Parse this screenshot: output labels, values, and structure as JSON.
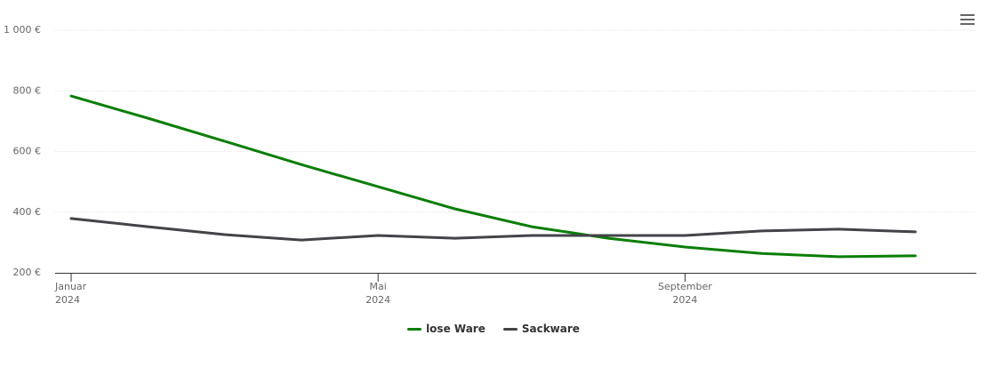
{
  "chart_data": {
    "type": "line",
    "x": [
      "2024-01",
      "2024-02",
      "2024-03",
      "2024-04",
      "2024-05",
      "2024-06",
      "2024-07",
      "2024-08",
      "2024-09",
      "2024-10",
      "2024-11",
      "2024-12"
    ],
    "series": [
      {
        "name": "lose Ware",
        "color": "#0a7e07",
        "values": [
          783,
          710,
          634,
          557,
          484,
          411,
          352,
          314,
          285,
          264,
          253,
          256
        ]
      },
      {
        "name": "Sackware",
        "color": "#434348",
        "values": [
          379,
          352,
          326,
          308,
          323,
          314,
          323,
          323,
          323,
          338,
          344,
          335
        ]
      }
    ],
    "ylim": [
      200,
      1000
    ],
    "yticks": [
      {
        "value": 200,
        "label": "200 €"
      },
      {
        "value": 400,
        "label": "400 €"
      },
      {
        "value": 600,
        "label": "600 €"
      },
      {
        "value": 800,
        "label": "800 €"
      },
      {
        "value": 1000,
        "label": "1 000 €"
      }
    ],
    "xticks": [
      {
        "value": "2024-01",
        "label": "Januar 2024"
      },
      {
        "value": "2024-05",
        "label": "Mai 2024"
      },
      {
        "value": "2024-09",
        "label": "September 2024"
      }
    ],
    "grid": true,
    "legend": "bottom"
  }
}
